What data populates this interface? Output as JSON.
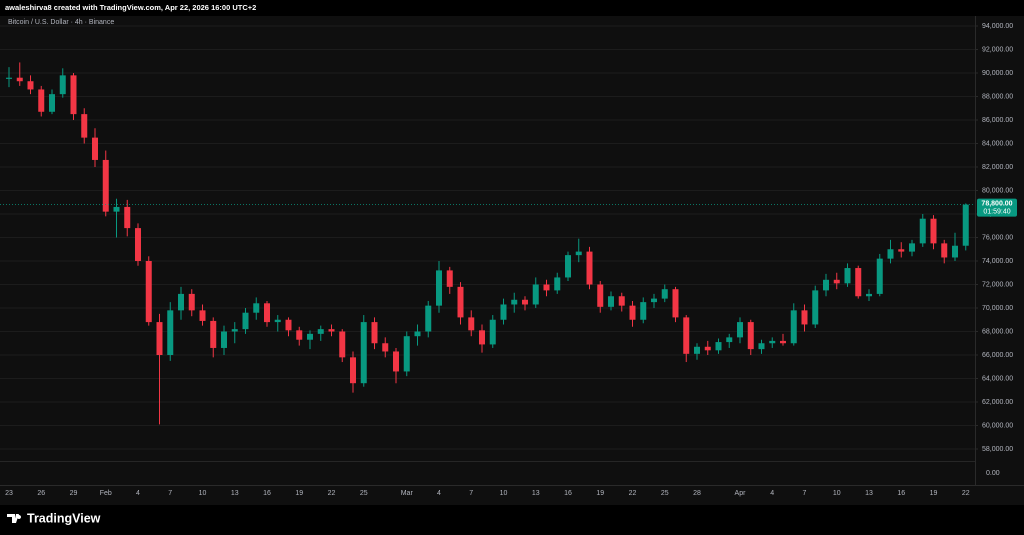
{
  "chart_data": {
    "type": "candlestick",
    "caption": "awaleshirva8 created with TradingView.com, Apr 22, 2026 16:00 UTC+2",
    "title": "Bitcoin / U.S. Dollar · 4h · Binance",
    "brand": "TradingView",
    "up_color": "#089981",
    "down_color": "#f23645",
    "grid": true,
    "ylim": [
      54936,
      94851
    ],
    "yticks": [
      {
        "value": 58000,
        "label": "58,000.00"
      },
      {
        "value": 60000,
        "label": "60,000.00"
      },
      {
        "value": 62000,
        "label": "62,000.00"
      },
      {
        "value": 64000,
        "label": "64,000.00"
      },
      {
        "value": 66000,
        "label": "66,000.00"
      },
      {
        "value": 68000,
        "label": "68,000.00"
      },
      {
        "value": 70000,
        "label": "70,000.00"
      },
      {
        "value": 72000,
        "label": "72,000.00"
      },
      {
        "value": 74000,
        "label": "74,000.00"
      },
      {
        "value": 76000,
        "label": "76,000.00"
      },
      {
        "value": 78000,
        "label": "78,000.00"
      },
      {
        "value": 80000,
        "label": "80,000.00"
      },
      {
        "value": 82000,
        "label": "82,000.00"
      },
      {
        "value": 84000,
        "label": "84,000.00"
      },
      {
        "value": 86000,
        "label": "86,000.00"
      },
      {
        "value": 88000,
        "label": "88,000.00"
      },
      {
        "value": 90000,
        "label": "90,000.00"
      },
      {
        "value": 92000,
        "label": "92,000.00"
      },
      {
        "value": 94000,
        "label": "94,000.00"
      }
    ],
    "axis_floor_label": "0.00",
    "last_price": {
      "value": 78800,
      "label": "78,800.00"
    },
    "countdown": "01:59:40",
    "categories": [
      "23",
      null,
      null,
      "26",
      null,
      null,
      "29",
      null,
      null,
      "Feb",
      null,
      null,
      "4",
      null,
      null,
      "7",
      null,
      null,
      "10",
      null,
      null,
      "13",
      null,
      null,
      "16",
      null,
      null,
      "19",
      null,
      null,
      "22",
      null,
      null,
      "25",
      null,
      null,
      null,
      "Mar",
      null,
      null,
      "4",
      null,
      null,
      "7",
      null,
      null,
      "10",
      null,
      null,
      "13",
      null,
      null,
      "16",
      null,
      null,
      "19",
      null,
      null,
      "22",
      null,
      null,
      "25",
      null,
      null,
      "28",
      null,
      null,
      null,
      "Apr",
      null,
      null,
      "4",
      null,
      null,
      "7",
      null,
      null,
      "10",
      null,
      null,
      "13",
      null,
      null,
      "16",
      null,
      null,
      "19",
      null,
      null,
      "22"
    ],
    "open": [
      89500,
      89600,
      89300,
      88600,
      86700,
      88200,
      89800,
      86500,
      84500,
      82600,
      78200,
      78600,
      76800,
      74000,
      68800,
      66000,
      69800,
      71200,
      69800,
      68900,
      66600,
      68000,
      68200,
      69600,
      70400,
      68800,
      69000,
      68100,
      67300,
      67800,
      68200,
      68000,
      65800,
      63600,
      68800,
      67000,
      66300,
      64600,
      67600,
      68000,
      70200,
      73200,
      71800,
      69200,
      68100,
      66900,
      69000,
      70300,
      70700,
      70300,
      72000,
      71500,
      72600,
      74500,
      74800,
      72000,
      70100,
      71000,
      70200,
      69000,
      70500,
      70800,
      71600,
      69200,
      66100,
      66700,
      66400,
      67100,
      67500,
      68800,
      66500,
      67000,
      67200,
      67000,
      69800,
      68600,
      71500,
      72400,
      72100,
      73400,
      71000,
      71200,
      74200,
      75000,
      74800,
      75500,
      77600,
      75500,
      74300,
      75300
    ],
    "high": [
      90500,
      90900,
      89800,
      88900,
      88600,
      90400,
      90000,
      87000,
      85300,
      83400,
      79300,
      79200,
      77200,
      74400,
      69500,
      70500,
      71800,
      71600,
      70300,
      69200,
      68500,
      68800,
      70000,
      70900,
      70600,
      69400,
      69200,
      68400,
      68100,
      68500,
      68600,
      68200,
      66300,
      69400,
      69200,
      67500,
      66600,
      68000,
      68600,
      70600,
      74000,
      73500,
      72200,
      69800,
      68600,
      69400,
      70800,
      71300,
      71000,
      72600,
      72400,
      73000,
      74800,
      75900,
      75200,
      72300,
      71400,
      71300,
      70600,
      70900,
      71200,
      72000,
      71800,
      69400,
      67000,
      67200,
      67400,
      67800,
      69200,
      69000,
      67300,
      67500,
      67800,
      70400,
      70300,
      71900,
      72900,
      73000,
      73800,
      73600,
      71600,
      74600,
      75800,
      75600,
      75800,
      78000,
      77900,
      75800,
      76400,
      78900
    ],
    "low": [
      88800,
      88900,
      88200,
      86300,
      86500,
      87900,
      86000,
      84000,
      82000,
      77800,
      76000,
      76100,
      73600,
      68500,
      60100,
      65500,
      69000,
      69300,
      68500,
      65800,
      66000,
      67000,
      67800,
      69000,
      68400,
      68000,
      67600,
      66800,
      66500,
      67200,
      67600,
      65400,
      62800,
      63300,
      66500,
      65800,
      63600,
      64200,
      66800,
      67500,
      69600,
      71200,
      68600,
      67600,
      66200,
      66600,
      68600,
      69600,
      69800,
      70000,
      71000,
      71200,
      72300,
      73900,
      71600,
      69600,
      69800,
      69700,
      68400,
      68700,
      70000,
      70500,
      68800,
      65400,
      65600,
      66000,
      66100,
      66600,
      67000,
      66000,
      66100,
      66600,
      66800,
      66800,
      68000,
      68300,
      71000,
      71600,
      71800,
      70800,
      70600,
      71000,
      73800,
      74300,
      74400,
      75200,
      75000,
      73800,
      74000,
      74900
    ],
    "close": [
      89600,
      89300,
      88600,
      86700,
      88200,
      89800,
      86500,
      84500,
      82600,
      78200,
      78600,
      76800,
      74000,
      68800,
      66000,
      69800,
      71200,
      69800,
      68900,
      66600,
      68000,
      68200,
      69600,
      70400,
      68800,
      69000,
      68100,
      67300,
      67800,
      68200,
      68000,
      65800,
      63600,
      68800,
      67000,
      66300,
      64600,
      67600,
      68000,
      70200,
      73200,
      71800,
      69200,
      68100,
      66900,
      69000,
      70300,
      70700,
      70300,
      72000,
      71500,
      72600,
      74500,
      74800,
      72000,
      70100,
      71000,
      70200,
      69000,
      70500,
      70800,
      71600,
      69200,
      66100,
      66700,
      66400,
      67100,
      67500,
      68800,
      66500,
      67000,
      67200,
      67000,
      69800,
      68600,
      71500,
      72400,
      72100,
      73400,
      71000,
      71200,
      74200,
      75000,
      74800,
      75500,
      77600,
      75500,
      74300,
      75300,
      78800
    ]
  }
}
